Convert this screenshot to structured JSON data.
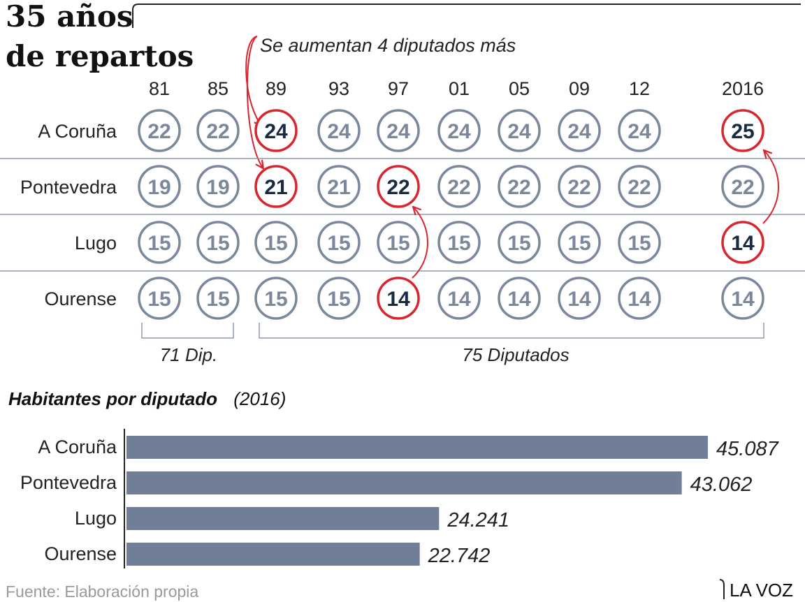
{
  "title": [
    "35 años",
    "de repartos"
  ],
  "annotation": "Se aumentan 4 diputados más",
  "seats_table": {
    "years": [
      "81",
      "85",
      "89",
      "93",
      "97",
      "01",
      "05",
      "09",
      "12",
      "2016"
    ],
    "rows": [
      {
        "province": "A Coruña",
        "seats": [
          22,
          22,
          24,
          24,
          24,
          24,
          24,
          24,
          24,
          25
        ],
        "changed": [
          false,
          false,
          true,
          false,
          false,
          false,
          false,
          false,
          false,
          true
        ]
      },
      {
        "province": "Pontevedra",
        "seats": [
          19,
          19,
          21,
          21,
          22,
          22,
          22,
          22,
          22,
          22
        ],
        "changed": [
          false,
          false,
          true,
          false,
          true,
          false,
          false,
          false,
          false,
          false
        ]
      },
      {
        "province": "Lugo",
        "seats": [
          15,
          15,
          15,
          15,
          15,
          15,
          15,
          15,
          15,
          14
        ],
        "changed": [
          false,
          false,
          false,
          false,
          false,
          false,
          false,
          false,
          false,
          true
        ]
      },
      {
        "province": "Ourense",
        "seats": [
          15,
          15,
          15,
          15,
          14,
          14,
          14,
          14,
          14,
          14
        ],
        "changed": [
          false,
          false,
          false,
          false,
          true,
          false,
          false,
          false,
          false,
          false
        ]
      }
    ],
    "brackets": [
      "71 Dip.",
      "75 Diputados"
    ]
  },
  "chart_data": {
    "type": "bar",
    "title": "Habitantes por diputado",
    "subtitle": "(2016)",
    "categories": [
      "A Coruña",
      "Pontevedra",
      "Lugo",
      "Ourense"
    ],
    "values": [
      45087,
      43062,
      24241,
      22742
    ],
    "value_labels": [
      "45.087",
      "43.062",
      "24.241",
      "22.742"
    ],
    "orientation": "horizontal"
  },
  "colors": {
    "circle_gray": "#7a879c",
    "highlight_red": "#d7262f",
    "dark_navy": "#172b45",
    "bar": "#707f97",
    "grid": "#8c9bb1",
    "text": "#222222",
    "source": "#9a9a9a"
  },
  "footer": {
    "source": "Fuente: Elaboración propia",
    "brand": "LA VOZ"
  }
}
